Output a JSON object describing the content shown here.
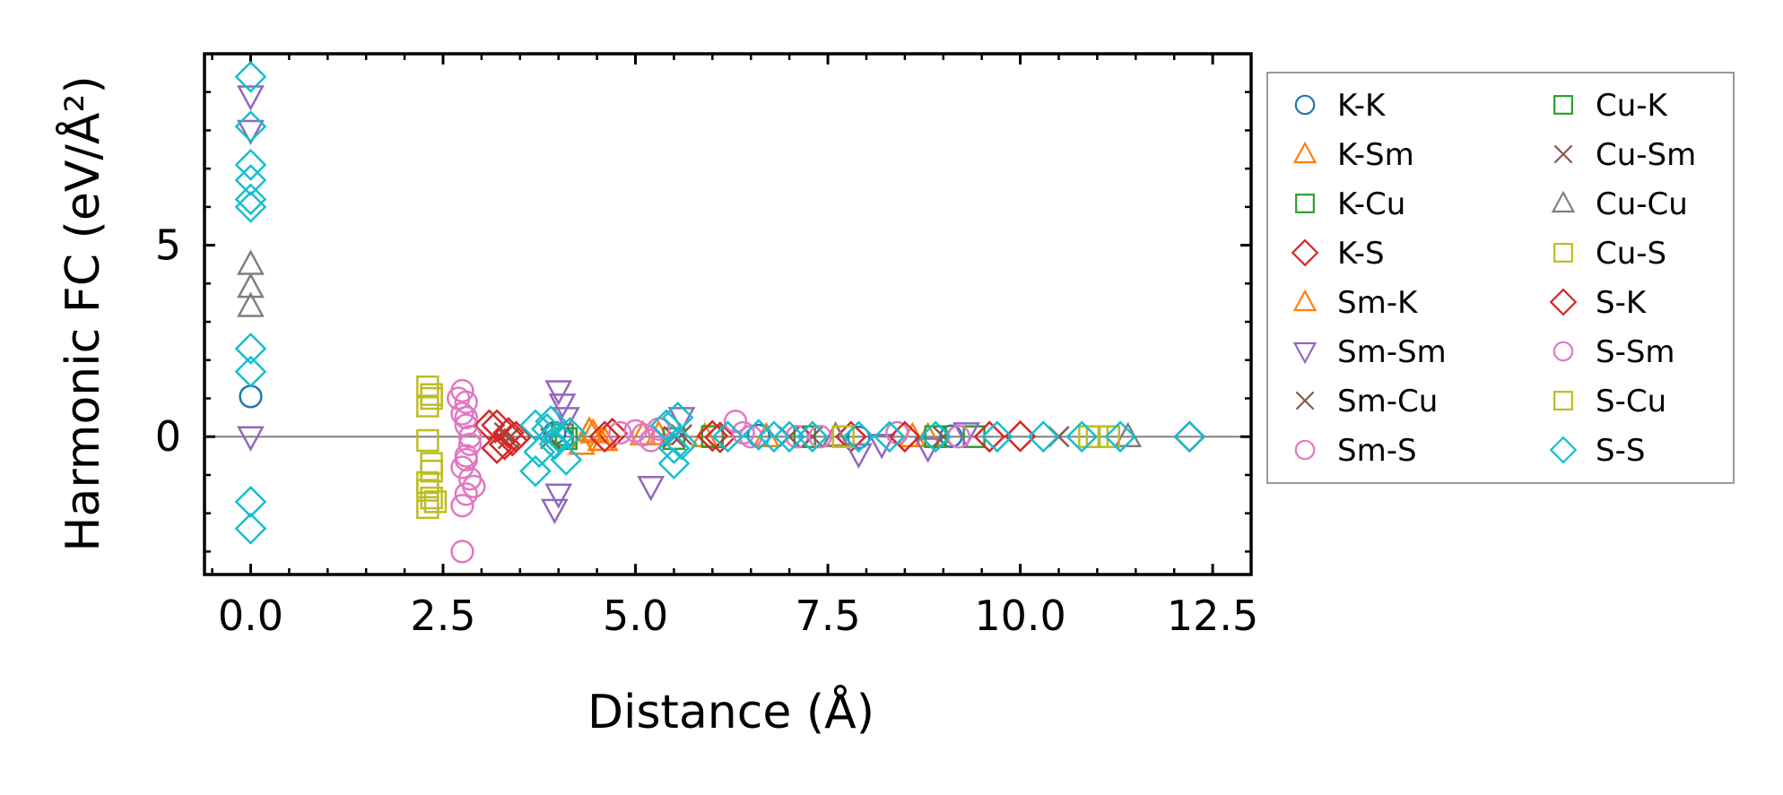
{
  "chart_data": {
    "type": "scatter",
    "title": "",
    "xlabel": "Distance (Å)",
    "ylabel": "Harmonic FC (eV/Å²)",
    "xlim": [
      -0.6,
      13.0
    ],
    "ylim": [
      -3.6,
      10.0
    ],
    "xticks": [
      0.0,
      2.5,
      5.0,
      7.5,
      10.0,
      12.5
    ],
    "xtick_labels": [
      "0.0",
      "2.5",
      "5.0",
      "7.5",
      "10.0",
      "12.5"
    ],
    "yticks": [
      0,
      5
    ],
    "ytick_labels": [
      "0",
      "5"
    ],
    "zero_line": true,
    "grid": false,
    "legend_position": "outside-right",
    "legend_columns": 2,
    "series": [
      {
        "name": "K-K",
        "marker": "circle",
        "color": "#1f77b4",
        "points": [
          [
            0.0,
            1.05
          ],
          [
            3.95,
            0.1
          ],
          [
            4.05,
            -0.05
          ],
          [
            6.6,
            0.03
          ],
          [
            7.9,
            -0.02
          ],
          [
            9.1,
            0.01
          ]
        ]
      },
      {
        "name": "K-Sm",
        "marker": "triangle-up",
        "color": "#ff7f0e",
        "points": [
          [
            4.3,
            -0.2
          ],
          [
            4.45,
            0.1
          ],
          [
            4.6,
            -0.1
          ],
          [
            5.3,
            0.05
          ],
          [
            5.9,
            0.0
          ],
          [
            7.6,
            0.02
          ],
          [
            8.6,
            0.0
          ]
        ]
      },
      {
        "name": "K-Cu",
        "marker": "square",
        "color": "#2ca02c",
        "points": [
          [
            4.05,
            0.05
          ],
          [
            5.5,
            -0.05
          ],
          [
            7.2,
            0.0
          ],
          [
            9.4,
            0.0
          ]
        ]
      },
      {
        "name": "K-S",
        "marker": "diamond",
        "color": "#d62728",
        "points": [
          [
            3.2,
            0.3
          ],
          [
            3.3,
            -0.2
          ],
          [
            3.45,
            0.0
          ],
          [
            4.7,
            0.08
          ],
          [
            6.1,
            -0.02
          ],
          [
            7.8,
            0.0
          ],
          [
            10.0,
            0.01
          ],
          [
            12.2,
            0.0
          ]
        ]
      },
      {
        "name": "Sm-K",
        "marker": "triangle-up",
        "color": "#ff7f0e",
        "points": [
          [
            4.4,
            0.15
          ],
          [
            4.55,
            -0.1
          ],
          [
            5.1,
            0.05
          ],
          [
            6.7,
            0.0
          ],
          [
            8.8,
            0.0
          ]
        ]
      },
      {
        "name": "Sm-Sm",
        "marker": "triangle-down",
        "color": "#9467bd",
        "points": [
          [
            0.0,
            8.9
          ],
          [
            0.0,
            8.0
          ],
          [
            0.0,
            0.0
          ],
          [
            4.0,
            1.2
          ],
          [
            4.05,
            0.85
          ],
          [
            4.0,
            -1.5
          ],
          [
            3.95,
            -1.9
          ],
          [
            4.1,
            0.5
          ],
          [
            5.2,
            -1.3
          ],
          [
            5.6,
            0.5
          ],
          [
            7.9,
            -0.45
          ],
          [
            8.2,
            -0.2
          ],
          [
            8.8,
            -0.3
          ],
          [
            9.3,
            0.1
          ]
        ]
      },
      {
        "name": "Sm-Cu",
        "marker": "x",
        "color": "#8c564b",
        "points": [
          [
            3.3,
            0.1
          ],
          [
            3.9,
            -0.05
          ],
          [
            5.6,
            0.05
          ],
          [
            7.0,
            0.0
          ],
          [
            9.0,
            0.0
          ],
          [
            10.5,
            0.0
          ]
        ]
      },
      {
        "name": "Sm-S",
        "marker": "circle",
        "color": "#e377c2",
        "points": [
          [
            2.75,
            1.2
          ],
          [
            2.8,
            0.9
          ],
          [
            2.75,
            0.6
          ],
          [
            2.8,
            0.3
          ],
          [
            2.85,
            -0.2
          ],
          [
            2.8,
            -0.5
          ],
          [
            2.75,
            -0.8
          ],
          [
            2.85,
            -1.1
          ],
          [
            2.8,
            -1.5
          ],
          [
            2.75,
            -1.8
          ],
          [
            2.75,
            -3.0
          ],
          [
            4.8,
            0.1
          ],
          [
            5.0,
            0.15
          ],
          [
            5.2,
            -0.1
          ],
          [
            6.3,
            0.4
          ],
          [
            6.4,
            0.1
          ],
          [
            7.1,
            0.0
          ],
          [
            8.4,
            0.1
          ],
          [
            9.2,
            0.0
          ]
        ]
      },
      {
        "name": "Cu-K",
        "marker": "square",
        "color": "#2ca02c",
        "points": [
          [
            4.1,
            -0.05
          ],
          [
            6.0,
            0.0
          ],
          [
            8.9,
            0.0
          ]
        ]
      },
      {
        "name": "Cu-Sm",
        "marker": "x",
        "color": "#8c564b",
        "points": [
          [
            3.35,
            -0.05
          ],
          [
            5.5,
            0.0
          ],
          [
            7.3,
            0.0
          ]
        ]
      },
      {
        "name": "Cu-Cu",
        "marker": "triangle-up",
        "color": "#7f7f7f",
        "points": [
          [
            0.0,
            4.5
          ],
          [
            0.0,
            3.9
          ],
          [
            0.0,
            3.4
          ],
          [
            7.6,
            0.0
          ],
          [
            11.4,
            0.0
          ]
        ]
      },
      {
        "name": "Cu-S",
        "marker": "square",
        "color": "#bcbd22",
        "points": [
          [
            2.3,
            1.3
          ],
          [
            2.35,
            1.0
          ],
          [
            2.3,
            0.8
          ],
          [
            2.3,
            -0.1
          ],
          [
            2.35,
            -0.9
          ],
          [
            2.3,
            -1.2
          ],
          [
            2.3,
            -1.4
          ],
          [
            2.35,
            -1.6
          ],
          [
            2.3,
            -1.85
          ],
          [
            11.0,
            0.0
          ],
          [
            11.15,
            0.0
          ]
        ]
      },
      {
        "name": "S-K",
        "marker": "diamond",
        "color": "#d62728",
        "points": [
          [
            3.1,
            0.3
          ],
          [
            3.2,
            -0.3
          ],
          [
            3.35,
            0.1
          ],
          [
            3.4,
            -0.1
          ],
          [
            4.6,
            0.0
          ],
          [
            6.0,
            0.02
          ],
          [
            8.5,
            0.0
          ],
          [
            9.6,
            0.0
          ],
          [
            12.2,
            0.0
          ]
        ]
      },
      {
        "name": "S-Sm",
        "marker": "circle",
        "color": "#e377c2",
        "points": [
          [
            2.7,
            1.0
          ],
          [
            2.8,
            0.5
          ],
          [
            2.85,
            0.0
          ],
          [
            2.8,
            -0.6
          ],
          [
            2.9,
            -1.3
          ],
          [
            5.1,
            0.05
          ],
          [
            5.3,
            0.2
          ],
          [
            6.5,
            0.0
          ],
          [
            7.4,
            0.0
          ]
        ]
      },
      {
        "name": "S-Cu",
        "marker": "square",
        "color": "#bcbd22",
        "points": [
          [
            2.35,
            1.1
          ],
          [
            2.35,
            -0.7
          ],
          [
            2.4,
            -1.7
          ],
          [
            7.7,
            0.0
          ],
          [
            10.9,
            0.0
          ]
        ]
      },
      {
        "name": "S-S",
        "marker": "diamond",
        "color": "#17becf",
        "points": [
          [
            0.0,
            9.4
          ],
          [
            0.0,
            8.1
          ],
          [
            0.0,
            7.1
          ],
          [
            0.0,
            6.7
          ],
          [
            0.0,
            6.2
          ],
          [
            0.0,
            6.0
          ],
          [
            0.0,
            2.3
          ],
          [
            0.0,
            1.7
          ],
          [
            0.0,
            -1.7
          ],
          [
            0.0,
            -2.4
          ],
          [
            3.7,
            0.3
          ],
          [
            3.75,
            -0.4
          ],
          [
            3.7,
            -0.9
          ],
          [
            3.85,
            0.2
          ],
          [
            3.9,
            0.4
          ],
          [
            3.95,
            -0.2
          ],
          [
            4.0,
            0.0
          ],
          [
            4.1,
            -0.6
          ],
          [
            4.15,
            0.1
          ],
          [
            5.4,
            0.3
          ],
          [
            5.5,
            -0.3
          ],
          [
            5.55,
            0.5
          ],
          [
            5.6,
            -0.2
          ],
          [
            5.5,
            -0.7
          ],
          [
            6.2,
            0.0
          ],
          [
            6.6,
            0.05
          ],
          [
            6.8,
            0.0
          ],
          [
            7.0,
            0.0
          ],
          [
            7.3,
            0.0
          ],
          [
            7.9,
            0.0
          ],
          [
            8.3,
            0.0
          ],
          [
            8.9,
            0.0
          ],
          [
            9.7,
            0.0
          ],
          [
            10.3,
            0.0
          ],
          [
            10.8,
            0.0
          ],
          [
            11.3,
            0.0
          ],
          [
            12.2,
            0.0
          ]
        ]
      }
    ]
  }
}
